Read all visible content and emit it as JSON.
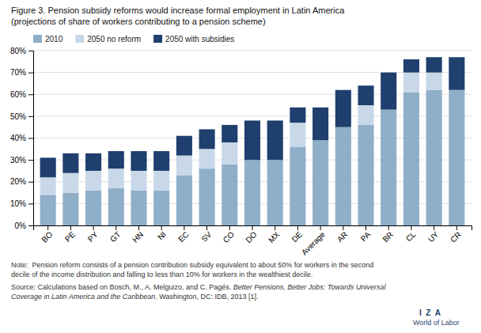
{
  "chart_data": {
    "type": "bar",
    "stacked": true,
    "title": "Figure 3. Pension subsidy reforms would increase formal employment in Latin America",
    "subtitle": "(projections of share of workers contributing to a pension scheme)",
    "categories": [
      "BO",
      "PE",
      "PY",
      "GT",
      "HN",
      "NI",
      "EC",
      "SV",
      "CO",
      "DO",
      "MX",
      "DE",
      "Average",
      "AR",
      "PA",
      "BR",
      "CL",
      "UY",
      "CR"
    ],
    "series": [
      {
        "name": "2010",
        "color": "#8faec8",
        "values": [
          0.14,
          0.15,
          0.16,
          0.17,
          0.16,
          0.16,
          0.23,
          0.26,
          0.28,
          0.3,
          0.3,
          0.36,
          0.39,
          0.45,
          0.46,
          0.53,
          0.61,
          0.62,
          0.62
        ]
      },
      {
        "name": "2050 no reform",
        "color": "#c8d8e8",
        "values": [
          0.08,
          0.09,
          0.09,
          0.09,
          0.09,
          0.09,
          0.09,
          0.09,
          0.1,
          0,
          0,
          0.11,
          0,
          0,
          0.09,
          0,
          0.09,
          0.08,
          0
        ]
      },
      {
        "name": "2050 with subsidies",
        "color": "#1f3f6e",
        "values": [
          0.09,
          0.09,
          0.08,
          0.08,
          0.09,
          0.09,
          0.09,
          0.09,
          0.08,
          0.18,
          0.18,
          0.07,
          0.15,
          0.17,
          0.09,
          0.17,
          0.06,
          0.07,
          0.15
        ]
      }
    ],
    "ylim": [
      0,
      0.8
    ],
    "yticks": [
      {
        "value": 0,
        "label": "0%"
      },
      {
        "value": 0.1,
        "label": "10%"
      },
      {
        "value": 0.2,
        "label": "20%"
      },
      {
        "value": 0.3,
        "label": "30%"
      },
      {
        "value": 0.4,
        "label": "40%"
      },
      {
        "value": 0.5,
        "label": "50%"
      },
      {
        "value": 0.6,
        "label": "60%"
      },
      {
        "value": 0.7,
        "label": "70%"
      },
      {
        "value": 0.8,
        "label": "80%"
      }
    ],
    "grid": true,
    "legend": "upper left",
    "annotations": [
      "Note:  Pension reform consists of a pension contribution subsidy equivalent to about 50% for workers in the second",
      "decile of the income distribution and falling to less than 10% for workers in the wealthiest decile.",
      "Source: Calculations based on Bosch, M., A. Melguizo, and C. Pagés. ",
      "Better Pensions, Better Jobs: Towards Universal",
      "Coverage in Latin America and the Caribbean.",
      " Washington, DC: IDB, 2013 [1].",
      "I  Z  A",
      "World of Labor"
    ]
  }
}
